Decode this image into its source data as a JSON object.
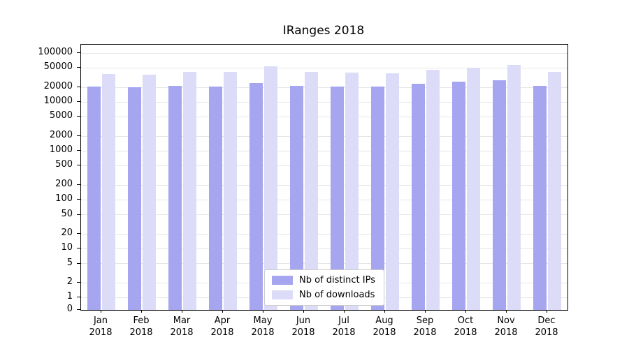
{
  "chart_data": {
    "type": "bar",
    "title": "IRanges 2018",
    "categories": [
      "Jan",
      "Feb",
      "Mar",
      "Apr",
      "May",
      "Jun",
      "Jul",
      "Aug",
      "Sep",
      "Oct",
      "Nov",
      "Dec"
    ],
    "year": "2018",
    "series": [
      {
        "name": "Nb of distinct IPs",
        "color": "#a5a5f0",
        "values": [
          21000,
          20300,
          21800,
          21200,
          24500,
          21400,
          21000,
          21000,
          23500,
          26500,
          28500,
          21500
        ]
      },
      {
        "name": "Nb of downloads",
        "color": "#dcdcf8",
        "values": [
          38000,
          36500,
          41500,
          41000,
          55000,
          41500,
          40500,
          38500,
          46000,
          51500,
          57000,
          41000
        ]
      }
    ],
    "yticks": [
      0,
      1,
      2,
      5,
      10,
      20,
      50,
      100,
      200,
      500,
      1000,
      2000,
      5000,
      10000,
      20000,
      50000,
      100000
    ],
    "yscale": "symlog",
    "ylim": [
      0,
      150000
    ],
    "xlabel": "",
    "ylabel": "",
    "grid": true,
    "legend_position": "lower center",
    "grid_color": "#e6e6e6",
    "axis_color": "#000000"
  }
}
